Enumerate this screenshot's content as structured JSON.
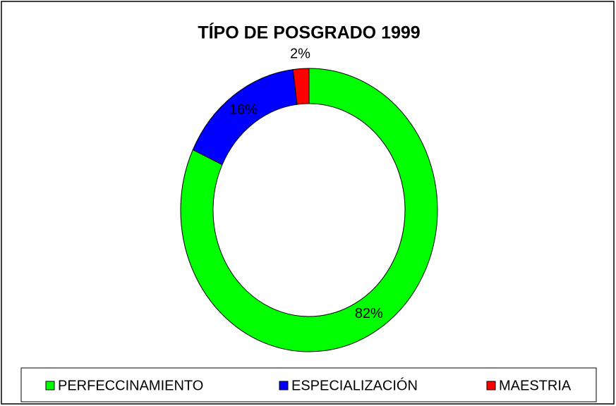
{
  "chart_data": {
    "type": "donut",
    "title": "TÍPO DE POSGRADO 1999",
    "categories": [
      "PERFECCINAMIENTO",
      "ESPECIALIZACIÓN",
      "MAESTRIA"
    ],
    "values": [
      82,
      16,
      2
    ],
    "value_labels": [
      "82%",
      "16%",
      "2%"
    ],
    "colors": [
      "#00ff00",
      "#0000ff",
      "#ff0000"
    ],
    "legend": "bottom"
  }
}
